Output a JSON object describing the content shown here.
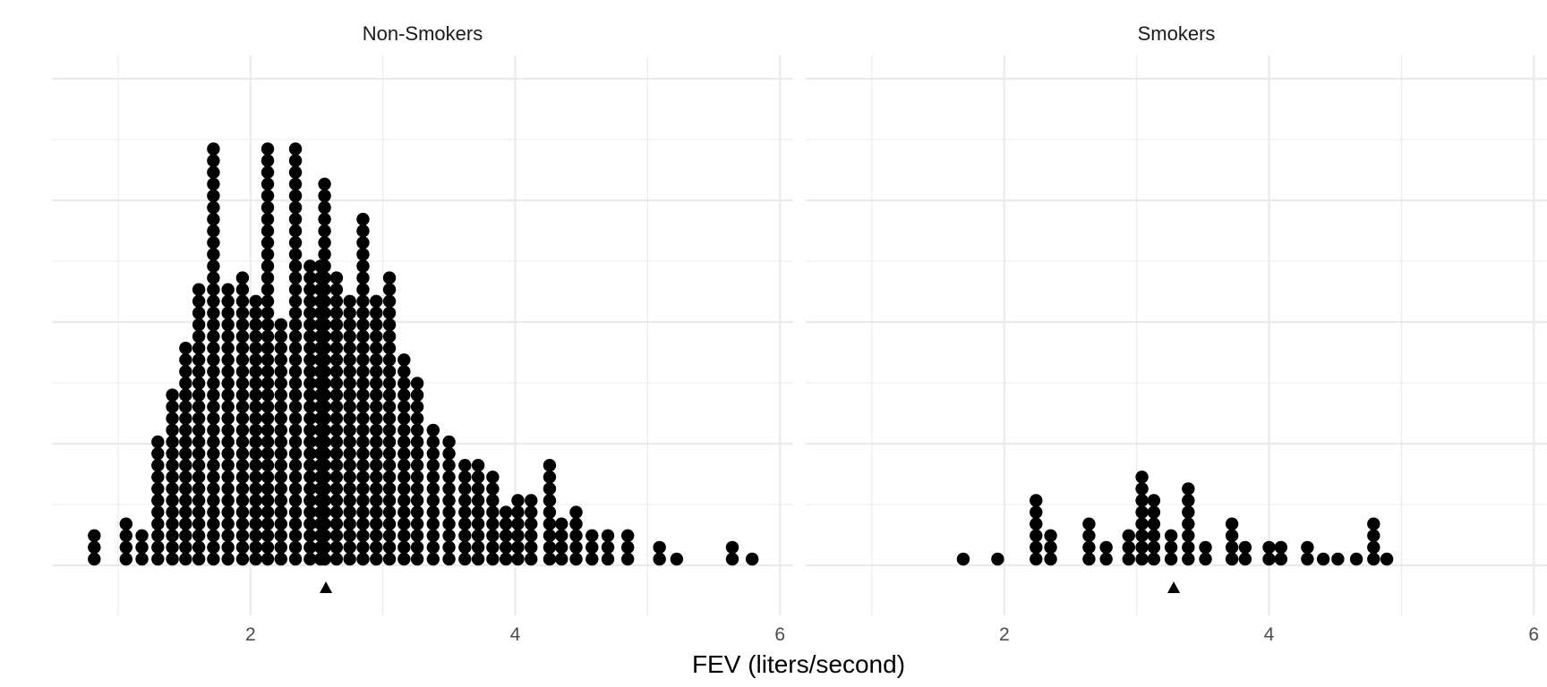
{
  "chart_data": {
    "type": "dotplot",
    "xlabel": "FEV (liters/second)",
    "xlim": [
      0.5,
      6.1
    ],
    "x_ticks": [
      2,
      4,
      6
    ],
    "x_tick_labels": [
      "2",
      "4",
      "6"
    ],
    "grid": true,
    "dot_color": "#000000",
    "panels": [
      {
        "title": "Non-Smokers",
        "mean": 2.57,
        "dots": [
          {
            "x": 0.82,
            "count": 3
          },
          {
            "x": 1.06,
            "count": 4
          },
          {
            "x": 1.18,
            "count": 3
          },
          {
            "x": 1.3,
            "count": 11
          },
          {
            "x": 1.41,
            "count": 15
          },
          {
            "x": 1.51,
            "count": 19
          },
          {
            "x": 1.61,
            "count": 24
          },
          {
            "x": 1.72,
            "count": 36
          },
          {
            "x": 1.83,
            "count": 24
          },
          {
            "x": 1.94,
            "count": 25
          },
          {
            "x": 2.04,
            "count": 23
          },
          {
            "x": 2.13,
            "count": 36
          },
          {
            "x": 2.23,
            "count": 21
          },
          {
            "x": 2.34,
            "count": 36
          },
          {
            "x": 2.45,
            "count": 26
          },
          {
            "x": 2.53,
            "count": 26
          },
          {
            "x": 2.56,
            "count": 33
          },
          {
            "x": 2.65,
            "count": 25
          },
          {
            "x": 2.75,
            "count": 23
          },
          {
            "x": 2.85,
            "count": 30
          },
          {
            "x": 2.95,
            "count": 23
          },
          {
            "x": 3.05,
            "count": 25
          },
          {
            "x": 3.16,
            "count": 18
          },
          {
            "x": 3.26,
            "count": 16
          },
          {
            "x": 3.38,
            "count": 12
          },
          {
            "x": 3.5,
            "count": 11
          },
          {
            "x": 3.62,
            "count": 9
          },
          {
            "x": 3.72,
            "count": 9
          },
          {
            "x": 3.83,
            "count": 8
          },
          {
            "x": 3.93,
            "count": 5
          },
          {
            "x": 4.02,
            "count": 6
          },
          {
            "x": 4.12,
            "count": 6
          },
          {
            "x": 4.26,
            "count": 9
          },
          {
            "x": 4.35,
            "count": 4
          },
          {
            "x": 4.46,
            "count": 5
          },
          {
            "x": 4.58,
            "count": 3
          },
          {
            "x": 4.7,
            "count": 3
          },
          {
            "x": 4.85,
            "count": 3
          },
          {
            "x": 5.09,
            "count": 2
          },
          {
            "x": 5.22,
            "count": 1
          },
          {
            "x": 5.64,
            "count": 2
          },
          {
            "x": 5.79,
            "count": 1
          }
        ]
      },
      {
        "title": "Smokers",
        "mean": 3.28,
        "dots": [
          {
            "x": 1.69,
            "count": 1
          },
          {
            "x": 1.95,
            "count": 1
          },
          {
            "x": 2.24,
            "count": 6
          },
          {
            "x": 2.35,
            "count": 3
          },
          {
            "x": 2.64,
            "count": 4
          },
          {
            "x": 2.77,
            "count": 2
          },
          {
            "x": 2.94,
            "count": 3
          },
          {
            "x": 3.04,
            "count": 8
          },
          {
            "x": 3.13,
            "count": 6
          },
          {
            "x": 3.26,
            "count": 3
          },
          {
            "x": 3.39,
            "count": 7
          },
          {
            "x": 3.52,
            "count": 2
          },
          {
            "x": 3.72,
            "count": 4
          },
          {
            "x": 3.82,
            "count": 2
          },
          {
            "x": 4.0,
            "count": 2
          },
          {
            "x": 4.09,
            "count": 2
          },
          {
            "x": 4.29,
            "count": 2
          },
          {
            "x": 4.41,
            "count": 1
          },
          {
            "x": 4.52,
            "count": 1
          },
          {
            "x": 4.66,
            "count": 1
          },
          {
            "x": 4.79,
            "count": 4
          },
          {
            "x": 4.89,
            "count": 1
          }
        ]
      }
    ]
  }
}
